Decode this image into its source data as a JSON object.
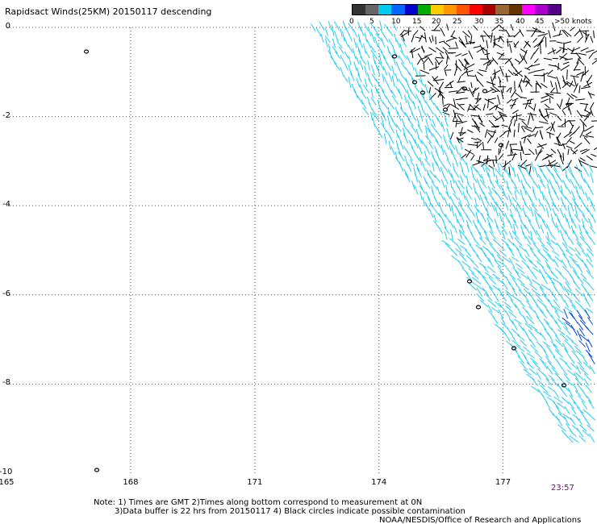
{
  "header": {
    "title": "Rapidsact Winds(25KM) 20150117 descending"
  },
  "legend": {
    "colors": [
      "#333333",
      "#666666",
      "#00ccee",
      "#0066ff",
      "#0000cc",
      "#00aa00",
      "#ffcc00",
      "#ff9900",
      "#ff5500",
      "#ff0000",
      "#aa0000",
      "#996633",
      "#663300",
      "#ff00ff",
      "#aa00cc",
      "#550088"
    ],
    "labels": [
      "0",
      "5",
      "10",
      "15",
      "20",
      "25",
      "30",
      "35",
      "40",
      "45",
      ">50 knots"
    ]
  },
  "map": {
    "x_ticks": [
      "165",
      "168",
      "171",
      "174",
      "177"
    ],
    "y_ticks": [
      "0",
      "-2",
      "-4",
      "-6",
      "-8",
      "-10"
    ],
    "time_label": "23:57"
  },
  "notes": {
    "line1": "Note: 1) Times are GMT 2)Times along bottom correspond to measurement at 0N",
    "line2": "3)Data buffer is 22 hrs from 20150117 4) Black circles indicate possible contamination",
    "line3": "NOAA/NESDIS/Office of Research and Applications"
  },
  "wind_field": {
    "swath_edge_description": "descending swath covering NE portion of map",
    "colors": {
      "calm": "#000000",
      "light": "#22ccee",
      "moderate": "#0044dd",
      "strong": "#00aa00",
      "stronger": "#ffcc00"
    }
  }
}
